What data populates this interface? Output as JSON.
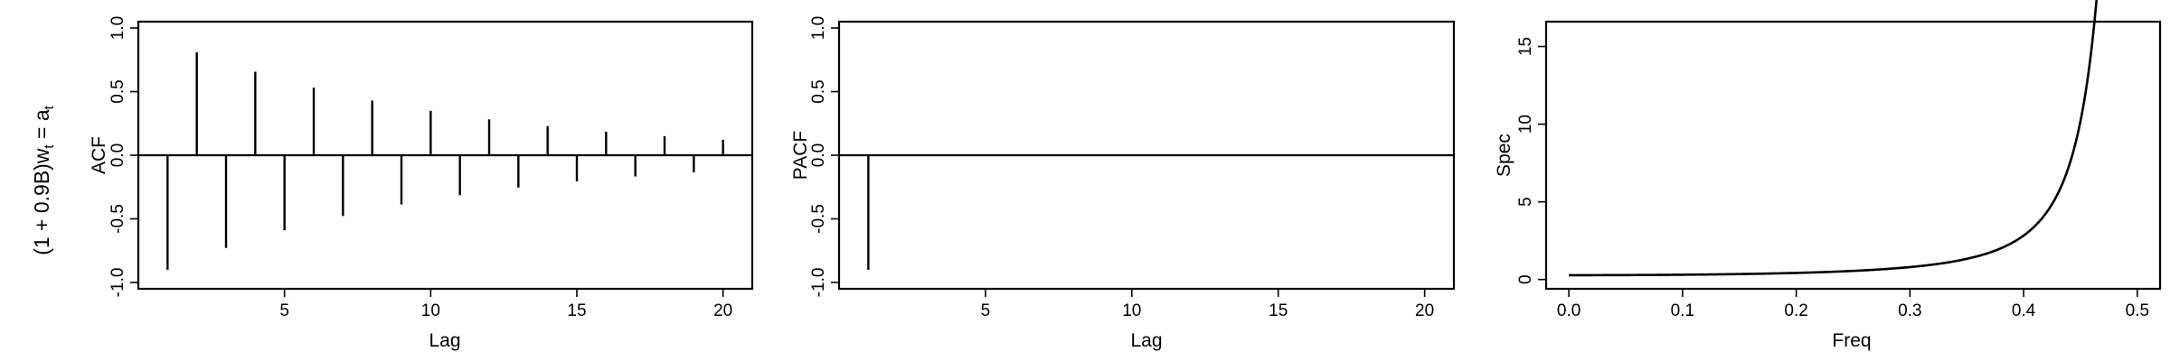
{
  "row_label_main": "(1 + 0.9B)w",
  "row_label_sub": "t",
  "row_label_eq": " = a",
  "row_label_sub2": "t",
  "chart_data": [
    {
      "type": "bar",
      "ylabel": "ACF",
      "xlabel": "Lag",
      "xlim": [
        0,
        21
      ],
      "ylim": [
        -1.05,
        1.05
      ],
      "xticks": [
        "5",
        "10",
        "15",
        "20"
      ],
      "yticks": [
        "-1.0",
        "-0.5",
        "0.0",
        "0.5",
        "1.0"
      ],
      "x": [
        1,
        2,
        3,
        4,
        5,
        6,
        7,
        8,
        9,
        10,
        11,
        12,
        13,
        14,
        15,
        16,
        17,
        18,
        19,
        20
      ],
      "values": [
        -0.9,
        0.81,
        -0.729,
        0.656,
        -0.59,
        0.531,
        -0.478,
        0.43,
        -0.387,
        0.349,
        -0.314,
        0.282,
        -0.254,
        0.229,
        -0.206,
        0.185,
        -0.167,
        0.15,
        -0.135,
        0.122
      ]
    },
    {
      "type": "bar",
      "ylabel": "PACF",
      "xlabel": "Lag",
      "xlim": [
        0,
        21
      ],
      "ylim": [
        -1.05,
        1.05
      ],
      "xticks": [
        "5",
        "10",
        "15",
        "20"
      ],
      "yticks": [
        "-1.0",
        "-0.5",
        "0.0",
        "0.5",
        "1.0"
      ],
      "x": [
        1,
        2,
        3,
        4,
        5,
        6,
        7,
        8,
        9,
        10,
        11,
        12,
        13,
        14,
        15,
        16,
        17,
        18,
        19,
        20
      ],
      "values": [
        -0.9,
        0,
        0,
        0,
        0,
        0,
        0,
        0,
        0,
        0,
        0,
        0,
        0,
        0,
        0,
        0,
        0,
        0,
        0,
        0
      ]
    },
    {
      "type": "line",
      "ylabel": "Spec",
      "xlabel": "Freq",
      "xlim": [
        -0.02,
        0.52
      ],
      "ylim": [
        -0.6,
        16.6
      ],
      "xticks": [
        "0.0",
        "0.1",
        "0.2",
        "0.3",
        "0.4",
        "0.5"
      ],
      "yticks": [
        "0",
        "5",
        "10",
        "15"
      ],
      "phi": -0.9,
      "x_range": [
        0,
        0.499
      ]
    }
  ]
}
